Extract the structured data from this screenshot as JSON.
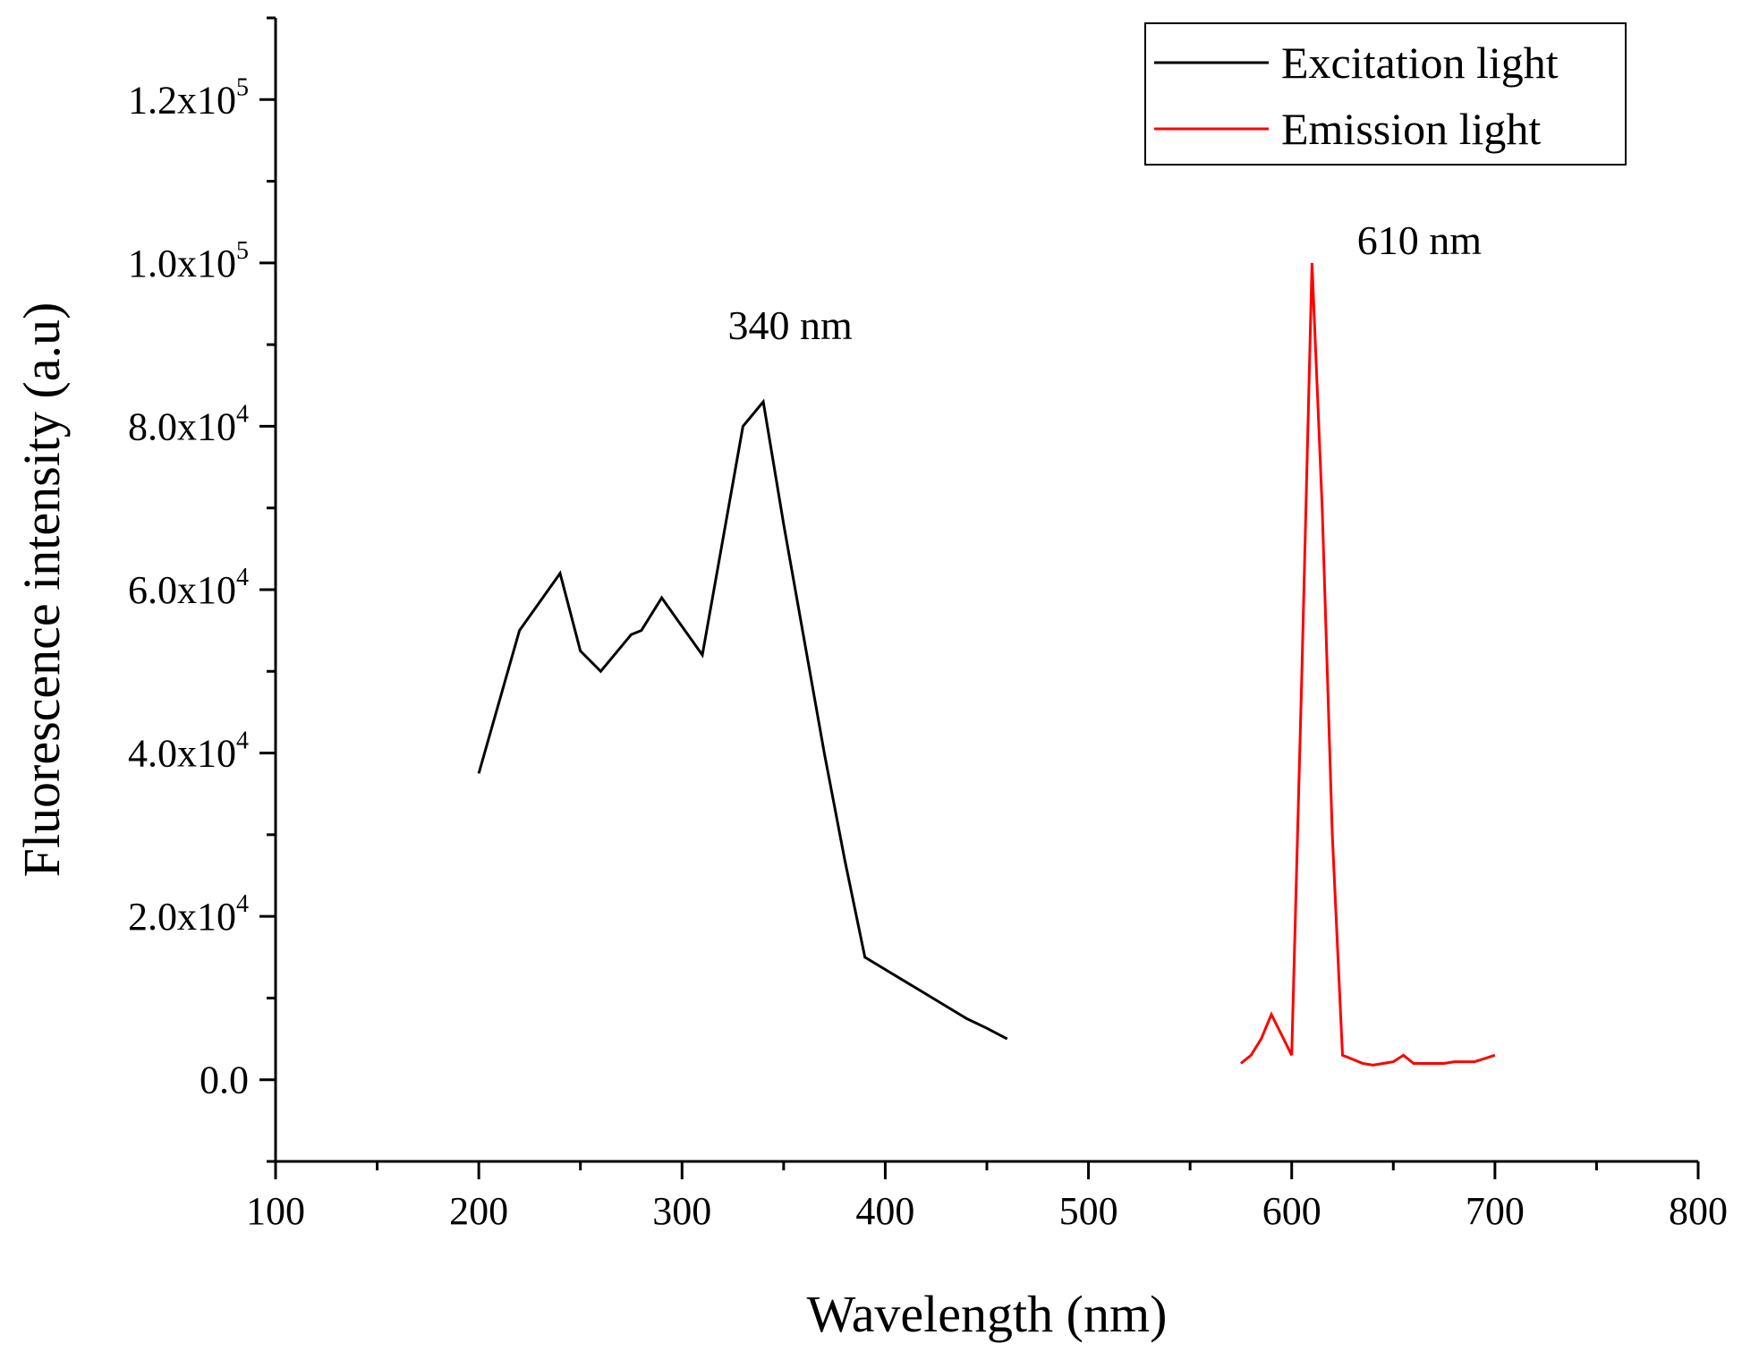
{
  "chart_data": {
    "type": "line",
    "title": "",
    "xlabel": "Wavelength (nm)",
    "ylabel": "Fluorescence intensity (a.u)",
    "xlim": [
      100,
      800
    ],
    "ylim": [
      -10000,
      130000
    ],
    "x_ticks": [
      {
        "value": 100,
        "label": "100"
      },
      {
        "value": 200,
        "label": "200"
      },
      {
        "value": 300,
        "label": "300"
      },
      {
        "value": 400,
        "label": "400"
      },
      {
        "value": 500,
        "label": "500"
      },
      {
        "value": 600,
        "label": "600"
      },
      {
        "value": 700,
        "label": "700"
      },
      {
        "value": 800,
        "label": "800"
      }
    ],
    "x_minor_ticks": [
      150,
      250,
      350,
      450,
      550,
      650,
      750
    ],
    "y_ticks": [
      {
        "value": 0,
        "mantissa": "0.0",
        "exp": ""
      },
      {
        "value": 20000,
        "mantissa": "2.0x10",
        "exp": "4"
      },
      {
        "value": 40000,
        "mantissa": "4.0x10",
        "exp": "4"
      },
      {
        "value": 60000,
        "mantissa": "6.0x10",
        "exp": "4"
      },
      {
        "value": 80000,
        "mantissa": "8.0x10",
        "exp": "4"
      },
      {
        "value": 100000,
        "mantissa": "1.0x10",
        "exp": "5"
      },
      {
        "value": 120000,
        "mantissa": "1.2x10",
        "exp": "5"
      }
    ],
    "y_minor_ticks": [
      -10000,
      10000,
      30000,
      50000,
      70000,
      90000,
      110000,
      130000
    ],
    "series": [
      {
        "name": "Excitation light",
        "color": "#000000",
        "x": [
          200,
          220,
          240,
          250,
          260,
          270,
          275,
          280,
          290,
          300,
          310,
          320,
          330,
          340,
          350,
          360,
          370,
          380,
          390,
          400,
          410,
          420,
          430,
          440,
          450,
          460
        ],
        "y": [
          37500,
          55000,
          62000,
          52500,
          50000,
          53000,
          54500,
          55000,
          59000,
          55500,
          52000,
          66000,
          80000,
          83000,
          68000,
          54000,
          40000,
          27000,
          15000,
          13500,
          12000,
          10500,
          9000,
          7500,
          6300,
          5000
        ]
      },
      {
        "name": "Emission light",
        "color": "#ff0000",
        "x": [
          575,
          580,
          585,
          590,
          595,
          600,
          605,
          610,
          615,
          620,
          625,
          630,
          635,
          640,
          645,
          650,
          655,
          660,
          665,
          670,
          675,
          680,
          690,
          700
        ],
        "y": [
          2000,
          3000,
          5000,
          8000,
          5500,
          3000,
          50000,
          100000,
          70000,
          30000,
          3000,
          2500,
          2000,
          1800,
          2000,
          2200,
          3000,
          2000,
          2000,
          2000,
          2000,
          2200,
          2200,
          3000
        ]
      }
    ],
    "annotations": [
      {
        "text": "340 nm",
        "x": 340,
        "y": 83000
      },
      {
        "text": "610 nm",
        "x": 610,
        "y": 100000
      }
    ],
    "legend": {
      "position": "top-right",
      "entries": [
        "Excitation light",
        "Emission light"
      ]
    }
  }
}
